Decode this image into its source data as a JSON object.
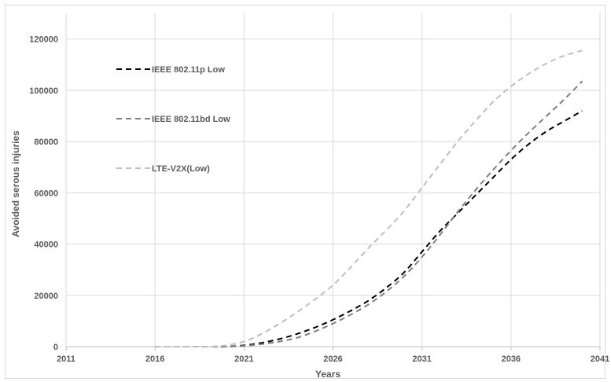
{
  "chart_data": {
    "type": "line",
    "title": "",
    "xlabel": "Years",
    "ylabel": "Avoided serous injuries",
    "xlim": [
      2011,
      2041
    ],
    "ylim": [
      0,
      130000
    ],
    "x_ticks": [
      "2011",
      "2016",
      "2021",
      "2026",
      "2031",
      "2036",
      "2041"
    ],
    "y_ticks": [
      "0",
      "20000",
      "40000",
      "60000",
      "80000",
      "100000",
      "120000"
    ],
    "grid": true,
    "legend_position": "top-left",
    "series": [
      {
        "name": "IEEE 802.11p Low",
        "color": "#000000",
        "dash": "dashed",
        "x": [
          2016,
          2017,
          2018,
          2019,
          2020,
          2021,
          2022,
          2023,
          2024,
          2025,
          2026,
          2027,
          2028,
          2029,
          2030,
          2031,
          2032,
          2033,
          2034,
          2035,
          2036,
          2037,
          2038,
          2039,
          2040
        ],
        "values": [
          0,
          0,
          0,
          0,
          0,
          500,
          1500,
          3000,
          5000,
          7500,
          10500,
          14000,
          18000,
          23000,
          29000,
          37000,
          45000,
          52000,
          59000,
          66000,
          73000,
          79000,
          84000,
          88000,
          92000
        ]
      },
      {
        "name": "IEEE 802.11bd Low",
        "color": "#7f7f7f",
        "dash": "dashed",
        "x": [
          2016,
          2017,
          2018,
          2019,
          2020,
          2021,
          2022,
          2023,
          2024,
          2025,
          2026,
          2027,
          2028,
          2029,
          2030,
          2031,
          2032,
          2033,
          2034,
          2035,
          2036,
          2037,
          2038,
          2039,
          2040
        ],
        "values": [
          0,
          0,
          0,
          0,
          0,
          300,
          1000,
          2000,
          3500,
          6000,
          9000,
          12500,
          16500,
          21500,
          27500,
          35000,
          43500,
          52500,
          61000,
          69000,
          76500,
          83500,
          90000,
          96500,
          103500
        ]
      },
      {
        "name": "LTE-V2X(Low)",
        "color": "#bfbfbf",
        "dash": "dashed",
        "x": [
          2016,
          2017,
          2018,
          2019,
          2020,
          2021,
          2022,
          2023,
          2024,
          2025,
          2026,
          2027,
          2028,
          2029,
          2030,
          2031,
          2032,
          2033,
          2034,
          2035,
          2036,
          2037,
          2038,
          2039,
          2040
        ],
        "values": [
          0,
          0,
          0,
          0,
          500,
          2000,
          5000,
          9000,
          13500,
          18500,
          24000,
          31000,
          38500,
          45500,
          53000,
          62000,
          71000,
          80000,
          88000,
          95500,
          101500,
          106500,
          110500,
          113500,
          115500
        ]
      }
    ]
  }
}
